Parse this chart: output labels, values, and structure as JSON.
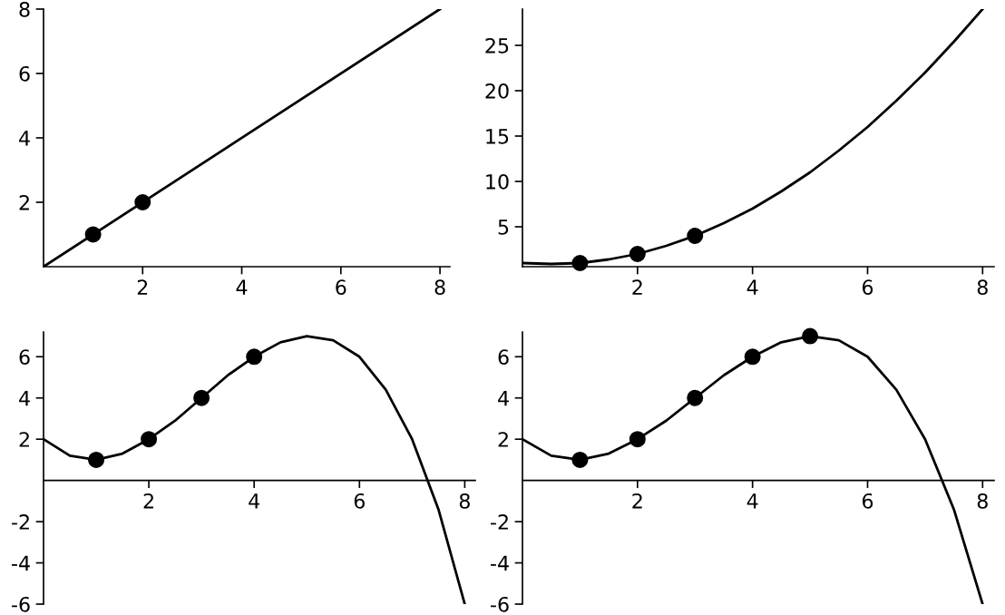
{
  "chart_data": [
    {
      "type": "line",
      "xlim": [
        0,
        8.2
      ],
      "ylim": [
        0,
        8
      ],
      "xticks": [
        2,
        4,
        6,
        8
      ],
      "yticks": [
        2,
        4,
        6,
        8
      ],
      "series": [
        {
          "type": "line",
          "color": "#000000",
          "x": [
            0,
            8
          ],
          "values": [
            0,
            8
          ]
        },
        {
          "type": "scatter",
          "color": "#000000",
          "marker": "circle",
          "x": [
            1,
            2
          ],
          "values": [
            1,
            2
          ]
        }
      ]
    },
    {
      "type": "line",
      "xlim": [
        0,
        8.2
      ],
      "ylim": [
        0.6,
        29
      ],
      "xticks": [
        2,
        4,
        6,
        8
      ],
      "yticks": [
        5,
        10,
        15,
        20,
        25
      ],
      "series": [
        {
          "type": "line",
          "color": "#000000",
          "x": [
            0,
            0.5,
            1,
            1.5,
            2,
            2.5,
            3,
            3.5,
            4,
            4.5,
            5,
            5.5,
            6,
            6.5,
            7,
            7.5,
            8
          ],
          "values": [
            1,
            0.9,
            1,
            1.4,
            2,
            2.9,
            4,
            5.4,
            7,
            8.9,
            11,
            13.4,
            16,
            18.9,
            22,
            25.4,
            29
          ]
        },
        {
          "type": "scatter",
          "color": "#000000",
          "marker": "circle",
          "x": [
            1,
            2,
            3
          ],
          "values": [
            1,
            2,
            4
          ]
        }
      ]
    },
    {
      "type": "line",
      "xlim": [
        0,
        8.2
      ],
      "ylim": [
        -6,
        7.2
      ],
      "xticks": [
        2,
        4,
        6,
        8
      ],
      "yticks": [
        -6,
        -4,
        -2,
        2,
        4,
        6
      ],
      "series": [
        {
          "type": "line",
          "color": "#000000",
          "x": [
            0,
            0.5,
            1,
            1.5,
            2,
            2.5,
            3,
            3.5,
            4,
            4.5,
            5,
            5.5,
            6,
            6.5,
            7,
            7.5,
            8
          ],
          "values": [
            2,
            1.2,
            1,
            1.3,
            2,
            2.9,
            4,
            5.1,
            6,
            6.7,
            7,
            6.8,
            6,
            4.4,
            2,
            -1.4,
            -6
          ]
        },
        {
          "type": "scatter",
          "color": "#000000",
          "marker": "circle",
          "x": [
            1,
            2,
            3,
            4
          ],
          "values": [
            1,
            2,
            4,
            6
          ]
        }
      ]
    },
    {
      "type": "line",
      "xlim": [
        0,
        8.2
      ],
      "ylim": [
        -6,
        7.2
      ],
      "xticks": [
        2,
        4,
        6,
        8
      ],
      "yticks": [
        -6,
        -4,
        -2,
        2,
        4,
        6
      ],
      "series": [
        {
          "type": "line",
          "color": "#000000",
          "x": [
            0,
            0.5,
            1,
            1.5,
            2,
            2.5,
            3,
            3.5,
            4,
            4.5,
            5,
            5.5,
            6,
            6.5,
            7,
            7.5,
            8
          ],
          "values": [
            2,
            1.2,
            1,
            1.3,
            2,
            2.9,
            4,
            5.1,
            6,
            6.7,
            7,
            6.8,
            6,
            4.4,
            2,
            -1.4,
            -6
          ]
        },
        {
          "type": "scatter",
          "color": "#000000",
          "marker": "circle",
          "x": [
            1,
            2,
            3,
            4,
            5
          ],
          "values": [
            1,
            2,
            4,
            6,
            7
          ]
        }
      ]
    }
  ]
}
